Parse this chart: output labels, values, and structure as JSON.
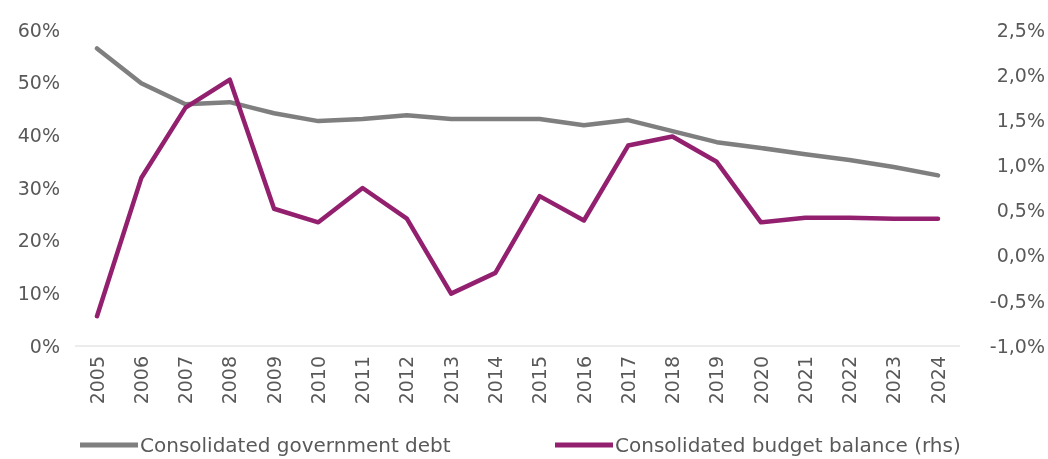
{
  "chart_data": {
    "type": "line",
    "categories": [
      "2005",
      "2006",
      "2007",
      "2008",
      "2009",
      "2010",
      "2011",
      "2012",
      "2013",
      "2014",
      "2015",
      "2016",
      "2017",
      "2018",
      "2019",
      "2020",
      "2021",
      "2022",
      "2023",
      "2024"
    ],
    "series": [
      {
        "name": "Consolidated government debt",
        "color": "#7f7f7f",
        "values": [
          56.5,
          49.9,
          45.9,
          46.3,
          44.2,
          42.7,
          43.1,
          43.8,
          43.1,
          43.1,
          43.1,
          41.9,
          42.9,
          40.8,
          38.7,
          37.6,
          36.4,
          35.3,
          34.0,
          32.4
        ]
      },
      {
        "name": "Consolidated budget balance (rhs)",
        "color": "#93206e",
        "axis": "y2",
        "values": [
          -0.67,
          0.86,
          1.64,
          1.95,
          0.52,
          0.37,
          0.75,
          0.41,
          -0.42,
          -0.19,
          0.66,
          0.39,
          1.22,
          1.32,
          1.04,
          0.37,
          0.42,
          0.42,
          0.41,
          0.41
        ]
      }
    ],
    "ylim": [
      0,
      60
    ],
    "yticks": [
      {
        "value": 0,
        "label": "0%"
      },
      {
        "value": 10,
        "label": "10%"
      },
      {
        "value": 20,
        "label": "20%"
      },
      {
        "value": 30,
        "label": "30%"
      },
      {
        "value": 40,
        "label": "40%"
      },
      {
        "value": 50,
        "label": "50%"
      },
      {
        "value": 60,
        "label": "60%"
      }
    ],
    "y2lim": [
      -1,
      2.5
    ],
    "y2ticks": [
      {
        "value": -1,
        "label": "-1,0%"
      },
      {
        "value": -0.5,
        "label": "-0,5%"
      },
      {
        "value": 0,
        "label": "0,0%"
      },
      {
        "value": 0.5,
        "label": "0,5%"
      },
      {
        "value": 1,
        "label": "1,0%"
      },
      {
        "value": 1.5,
        "label": "1,5%"
      },
      {
        "value": 2,
        "label": "2,0%"
      },
      {
        "value": 2.5,
        "label": "2,5%"
      }
    ],
    "legend": "bottom",
    "grid": false
  }
}
